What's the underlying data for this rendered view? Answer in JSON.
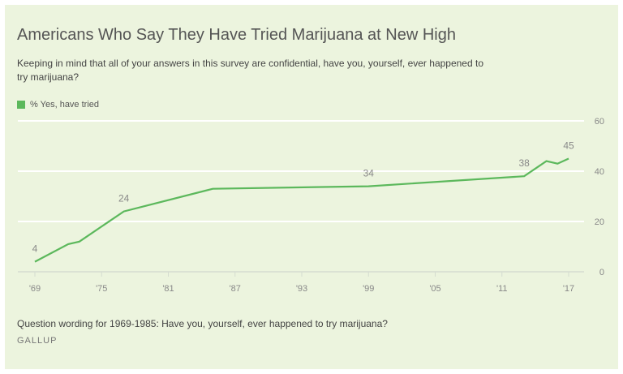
{
  "title": "Americans Who Say They Have Tried Marijuana at New High",
  "subtitle": "Keeping in mind that all of your answers in this survey are confidential, have you, yourself, ever happened to try marijuana?",
  "note": "Question wording for 1969-1985: Have you, yourself, ever happened to try marijuana?",
  "source": "GALLUP",
  "colors": {
    "line": "#5cb85c",
    "background": "#ecf4de",
    "grid": "#ffffff"
  },
  "chart_data": {
    "type": "line",
    "title": "Americans Who Say They Have Tried Marijuana at New High",
    "xlim": [
      1969,
      2017
    ],
    "ylim": [
      0,
      60
    ],
    "x_ticks": [
      1969,
      1975,
      1981,
      1987,
      1993,
      1999,
      2005,
      2011,
      2017
    ],
    "x_tick_labels": [
      "'69",
      "'75",
      "'81",
      "'87",
      "'93",
      "'99",
      "'05",
      "'11",
      "'17"
    ],
    "y_ticks": [
      0,
      20,
      40,
      60
    ],
    "y_tick_labels": [
      "0",
      "20",
      "40",
      "60"
    ],
    "grid": true,
    "legend_position": "top-left",
    "series": [
      {
        "name": "% Yes, have tried",
        "x": [
          1969,
          1972,
          1973,
          1977,
          1985,
          1999,
          2013,
          2015,
          2016,
          2017
        ],
        "values": [
          4,
          11,
          12,
          24,
          33,
          34,
          38,
          44,
          43,
          45
        ]
      }
    ],
    "data_labels": [
      {
        "x": 1969,
        "text": "4"
      },
      {
        "x": 1977,
        "text": "24"
      },
      {
        "x": 1999,
        "text": "34"
      },
      {
        "x": 2013,
        "text": "38"
      },
      {
        "x": 2017,
        "text": "45"
      }
    ]
  }
}
